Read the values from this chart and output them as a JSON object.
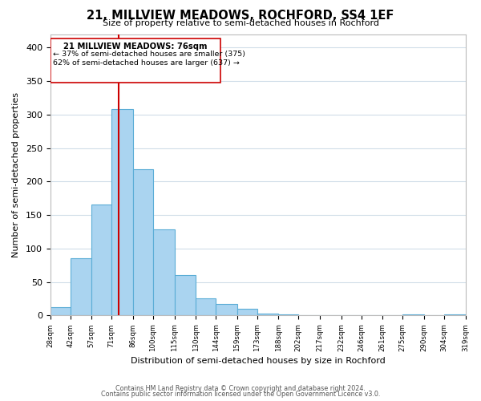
{
  "title1": "21, MILLVIEW MEADOWS, ROCHFORD, SS4 1EF",
  "title2": "Size of property relative to semi-detached houses in Rochford",
  "xlabel": "Distribution of semi-detached houses by size in Rochford",
  "ylabel": "Number of semi-detached properties",
  "footer1": "Contains HM Land Registry data © Crown copyright and database right 2024.",
  "footer2": "Contains public sector information licensed under the Open Government Licence v3.0.",
  "annotation_line1": "21 MILLVIEW MEADOWS: 76sqm",
  "annotation_line2": "← 37% of semi-detached houses are smaller (375)",
  "annotation_line3": "62% of semi-detached houses are larger (637) →",
  "red_line_x": 76,
  "bar_edges": [
    28,
    42,
    57,
    71,
    86,
    100,
    115,
    130,
    144,
    159,
    173,
    188,
    202,
    217,
    232,
    246,
    261,
    275,
    290,
    304,
    319
  ],
  "bar_heights": [
    13,
    86,
    166,
    308,
    218,
    129,
    60,
    26,
    17,
    10,
    3,
    2,
    0,
    0,
    0,
    0,
    0,
    2,
    0,
    2
  ],
  "bar_color": "#aad4f0",
  "bar_edge_color": "#5badd6",
  "red_line_color": "#cc0000",
  "box_edge_color": "#cc0000",
  "background_color": "#ffffff",
  "grid_color": "#d0dde8",
  "ylim": [
    0,
    420
  ],
  "yticks": [
    0,
    50,
    100,
    150,
    200,
    250,
    300,
    350,
    400
  ],
  "tick_labels": [
    "28sqm",
    "42sqm",
    "57sqm",
    "71sqm",
    "86sqm",
    "100sqm",
    "115sqm",
    "130sqm",
    "144sqm",
    "159sqm",
    "173sqm",
    "188sqm",
    "202sqm",
    "217sqm",
    "232sqm",
    "246sqm",
    "261sqm",
    "275sqm",
    "290sqm",
    "304sqm",
    "319sqm"
  ]
}
